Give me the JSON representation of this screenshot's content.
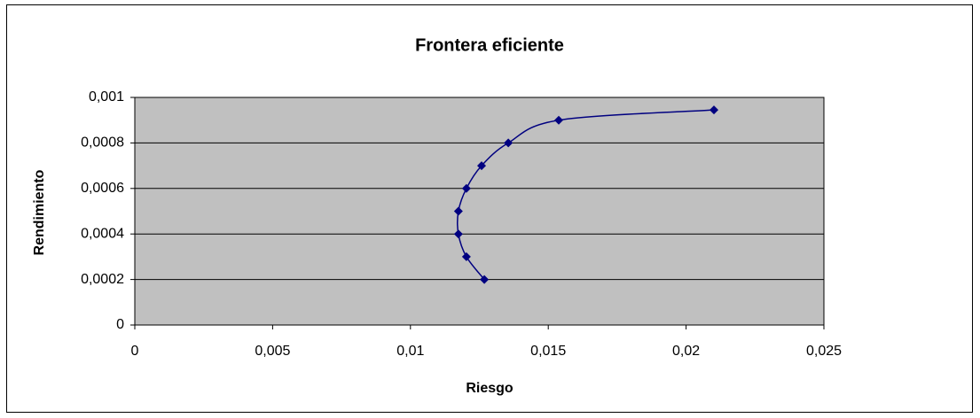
{
  "chart_data": {
    "type": "scatter",
    "title": "Frontera eficiente",
    "xlabel": "Riesgo",
    "ylabel": "Rendimiento",
    "x": [
      0.01268,
      0.01203,
      0.01174,
      0.01174,
      0.01203,
      0.01258,
      0.01355,
      0.01538,
      0.02101
    ],
    "values": [
      0.0002,
      0.0003,
      0.0004,
      0.0005,
      0.0006,
      0.0007,
      0.0008,
      0.0009,
      0.000945
    ],
    "color": "#000080",
    "smooth": true,
    "grid": true,
    "xlim": [
      0,
      0.025
    ],
    "xticks": [
      0,
      {
        "value": 0.005,
        "label": "0,005"
      },
      {
        "value": 0.01,
        "label": "0,01"
      },
      {
        "value": 0.015,
        "label": "0,015"
      },
      {
        "value": 0.02,
        "label": "0,02"
      },
      {
        "value": 0.025,
        "label": "0,025"
      }
    ],
    "ylim": [
      0,
      0.001
    ],
    "yticks": [
      0,
      {
        "value": 0.0002,
        "label": "0,0002"
      },
      {
        "value": 0.0004,
        "label": "0,0004"
      },
      {
        "value": 0.0006,
        "label": "0,0006"
      },
      {
        "value": 0.0008,
        "label": "0,0008"
      },
      {
        "value": 0.001,
        "label": "0,001"
      }
    ]
  }
}
